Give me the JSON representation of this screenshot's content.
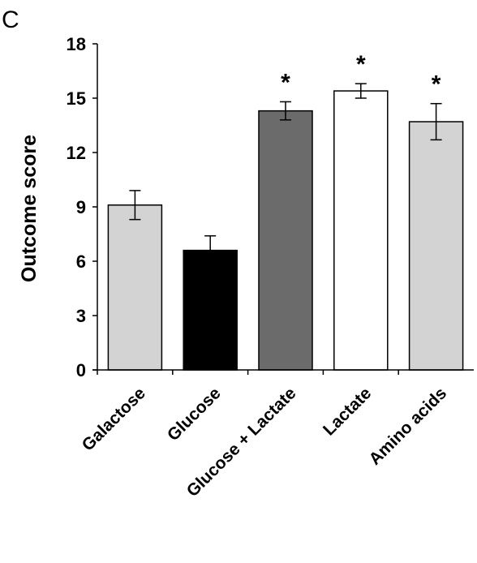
{
  "panel_label": "C",
  "chart_data": {
    "type": "bar",
    "title": "",
    "xlabel": "",
    "ylabel": "Outcome score",
    "ylim": [
      0,
      18
    ],
    "yticks": [
      "0",
      "3",
      "6",
      "9",
      "12",
      "15",
      "18"
    ],
    "categories": [
      "Galactose",
      "Glucose",
      "Glucose + Lactate",
      "Lactate",
      "Amino acids"
    ],
    "values": [
      9.1,
      6.6,
      14.3,
      15.4,
      13.7
    ],
    "errors": [
      0.8,
      0.8,
      0.5,
      0.4,
      1.0
    ],
    "significance": [
      "",
      "",
      "*",
      "*",
      "*"
    ],
    "bar_colors": [
      "#d3d3d3",
      "#000000",
      "#6b6b6b",
      "#ffffff",
      "#d3d3d3"
    ],
    "grid": false,
    "legend": "none"
  }
}
